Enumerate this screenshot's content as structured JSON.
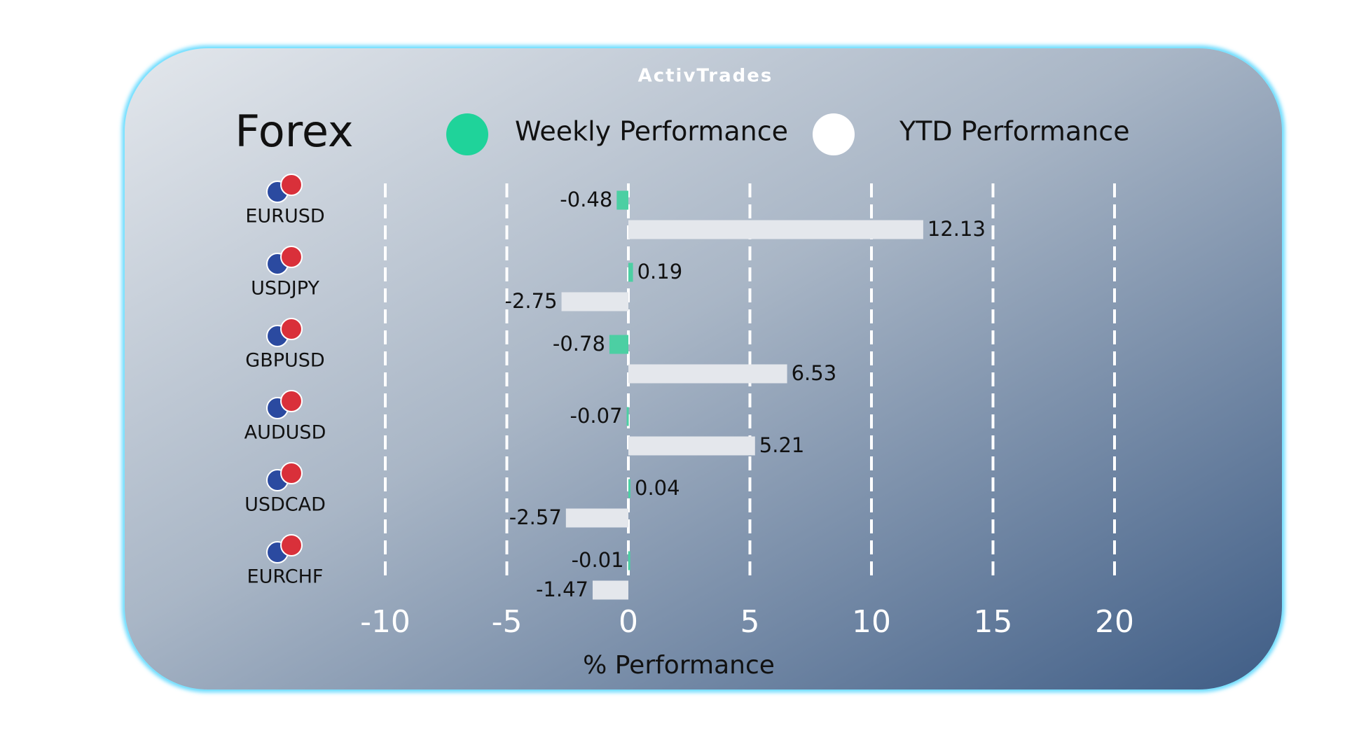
{
  "chart_data": {
    "type": "hbar",
    "title": "Forex",
    "logo": "ActivTrades",
    "categories": [
      "EURUSD",
      "USDJPY",
      "GBPUSD",
      "AUDUSD",
      "USDCAD",
      "EURCHF"
    ],
    "series": [
      {
        "name": "Weekly Performance",
        "color": "#4ccfa3",
        "legend_color": "#1fd39a",
        "values": [
          -0.48,
          0.19,
          -0.78,
          -0.07,
          0.04,
          -0.01
        ]
      },
      {
        "name": "YTD Performance",
        "color": "#e4e7ec",
        "legend_color": "#ffffff",
        "values": [
          12.13,
          -2.75,
          6.53,
          5.21,
          -2.57,
          -1.47
        ]
      }
    ],
    "xlabel": "% Performance",
    "xlim": [
      -10,
      20
    ],
    "xticks": [
      -10,
      -5,
      0,
      5,
      10,
      15,
      20
    ],
    "grid": true
  }
}
